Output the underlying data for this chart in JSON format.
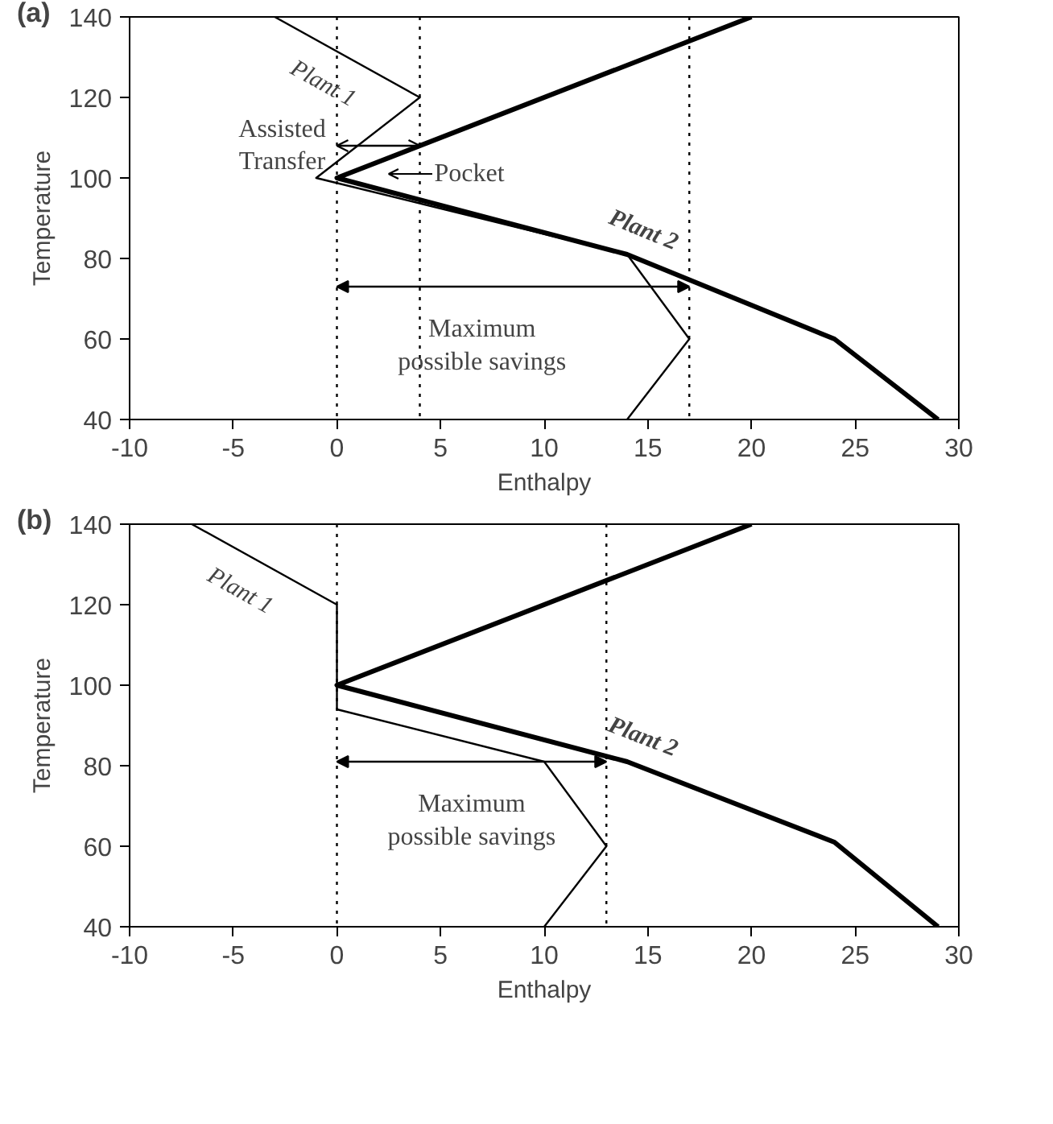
{
  "chart_data": [
    {
      "type": "line",
      "title": "(a)",
      "xlabel": "Enthalpy",
      "ylabel": "Temperature",
      "xlim": [
        -10,
        30
      ],
      "ylim": [
        40,
        140
      ],
      "xticks": [
        -10,
        -5,
        0,
        5,
        10,
        15,
        20,
        25,
        30
      ],
      "yticks": [
        40,
        60,
        80,
        100,
        120,
        140
      ],
      "grid": false,
      "legend": false,
      "marker": "none",
      "series": [
        {
          "name": "Plant 1",
          "color": "#000000",
          "x": [
            -3,
            4,
            -1,
            14,
            17,
            14
          ],
          "values": [
            140,
            120,
            100,
            81,
            60,
            40
          ]
        },
        {
          "name": "Plant 2",
          "color": "#000000",
          "x": [
            20,
            0,
            14,
            24,
            29
          ],
          "values": [
            140,
            100,
            81,
            60,
            40
          ]
        }
      ],
      "ref_lines": [
        {
          "axis": "x",
          "value": 0,
          "line_style": "dotted"
        },
        {
          "axis": "x",
          "value": 4,
          "line_style": "dotted"
        },
        {
          "axis": "x",
          "value": 17,
          "line_style": "dotted"
        }
      ],
      "annotations": [
        "Assisted Transfer",
        "Pocket",
        "Maximum possible savings"
      ]
    },
    {
      "type": "line",
      "title": "(b)",
      "xlabel": "Enthalpy",
      "ylabel": "Temperature",
      "xlim": [
        -10,
        30
      ],
      "ylim": [
        40,
        140
      ],
      "xticks": [
        -10,
        -5,
        0,
        5,
        10,
        15,
        20,
        25,
        30
      ],
      "yticks": [
        40,
        60,
        80,
        100,
        120,
        140
      ],
      "grid": false,
      "legend": false,
      "marker": "none",
      "series": [
        {
          "name": "Plant 1",
          "color": "#000000",
          "x": [
            -7,
            0,
            0,
            10,
            13,
            10
          ],
          "values": [
            140,
            120,
            94,
            81,
            60,
            40
          ]
        },
        {
          "name": "Plant 2",
          "color": "#000000",
          "x": [
            20,
            0,
            14,
            24,
            29
          ],
          "values": [
            140,
            100,
            81,
            61,
            40
          ]
        }
      ],
      "ref_lines": [
        {
          "axis": "x",
          "value": 0,
          "line_style": "dotted"
        },
        {
          "axis": "x",
          "value": 13,
          "line_style": "dotted"
        }
      ],
      "annotations": [
        "Maximum possible savings"
      ]
    }
  ]
}
